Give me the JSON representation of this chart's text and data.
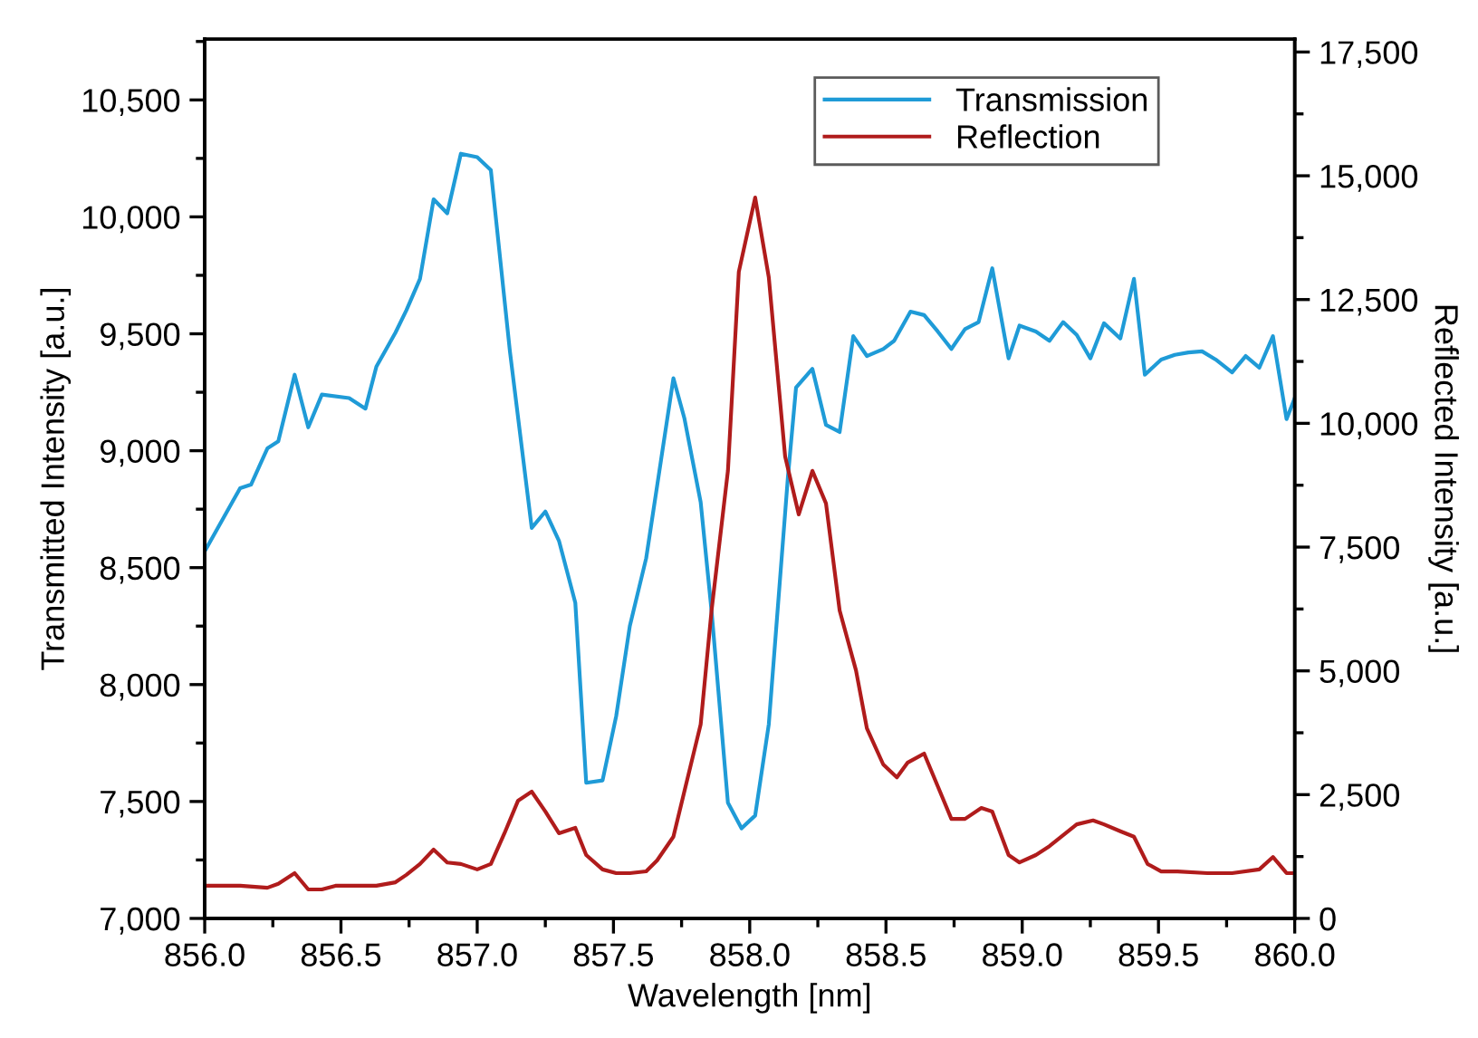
{
  "chart_data": {
    "type": "line",
    "xlabel": "Wavelength [nm]",
    "ylabel": "Transmitted Intensity [a.u.]",
    "y2label": "Reflected Intensity [a.u.]",
    "xlim": [
      856.0,
      860.0
    ],
    "xticks": [
      {
        "value": 856.0,
        "label": "856.0"
      },
      {
        "value": 856.5,
        "label": "856.5"
      },
      {
        "value": 857.0,
        "label": "857.0"
      },
      {
        "value": 857.5,
        "label": "857.5"
      },
      {
        "value": 858.0,
        "label": "858.0"
      },
      {
        "value": 858.5,
        "label": "858.5"
      },
      {
        "value": 859.0,
        "label": "859.0"
      },
      {
        "value": 859.5,
        "label": "859.5"
      },
      {
        "value": 860.0,
        "label": "860.0"
      }
    ],
    "ylim": [
      7000,
      10760
    ],
    "yticks": [
      {
        "value": 7000,
        "label": "7,000"
      },
      {
        "value": 7500,
        "label": "7,500"
      },
      {
        "value": 8000,
        "label": "8,000"
      },
      {
        "value": 8500,
        "label": "8,500"
      },
      {
        "value": 9000,
        "label": "9,000"
      },
      {
        "value": 9500,
        "label": "9,500"
      },
      {
        "value": 10000,
        "label": "10,000"
      },
      {
        "value": 10500,
        "label": "10,500"
      }
    ],
    "y2lim": [
      0,
      17760
    ],
    "y2ticks": [
      0,
      {
        "value": 2500,
        "label": "2,500"
      },
      {
        "value": 5000,
        "label": "5,000"
      },
      {
        "value": 7500,
        "label": "7,500"
      },
      {
        "value": 10000,
        "label": "10,000"
      },
      {
        "value": 12500,
        "label": "12,500"
      },
      {
        "value": 15000,
        "label": "15,000"
      },
      {
        "value": 17500,
        "label": "17,500"
      }
    ],
    "legend": "top right",
    "grid": false,
    "marker": "none",
    "line_style": "solid",
    "series": [
      {
        "name": "Transmission",
        "color": "#1f9bd7",
        "x": [
          856.0,
          856.13,
          856.17,
          856.23,
          856.27,
          856.33,
          856.38,
          856.43,
          856.53,
          856.59,
          856.63,
          856.7,
          856.74,
          856.79,
          856.84,
          856.89,
          856.94,
          857.0,
          857.05,
          857.12,
          857.2,
          857.25,
          857.3,
          857.36,
          857.4,
          857.46,
          857.51,
          857.56,
          857.62,
          857.72,
          857.76,
          857.82,
          857.86,
          857.92,
          857.97,
          858.02,
          858.07,
          858.14,
          858.17,
          858.23,
          858.28,
          858.33,
          858.38,
          858.43,
          858.49,
          858.53,
          858.59,
          858.64,
          858.69,
          858.74,
          858.79,
          858.84,
          858.89,
          858.95,
          858.99,
          859.05,
          859.1,
          859.15,
          859.2,
          859.25,
          859.3,
          859.36,
          859.41,
          859.45,
          859.51,
          859.56,
          859.61,
          859.66,
          859.71,
          859.77,
          859.82,
          859.87,
          859.92,
          859.97,
          860.0
        ],
        "values": [
          8570,
          8840,
          8855,
          9010,
          9040,
          9325,
          9100,
          9240,
          9225,
          9180,
          9360,
          9505,
          9600,
          9735,
          10075,
          10015,
          10270,
          10255,
          10200,
          9425,
          8670,
          8740,
          8615,
          8350,
          7580,
          7590,
          7865,
          8250,
          8540,
          9310,
          9140,
          8780,
          8315,
          7495,
          7385,
          7440,
          7830,
          8885,
          9270,
          9350,
          9110,
          9080,
          9490,
          9405,
          9435,
          9470,
          9595,
          9580,
          9510,
          9435,
          9520,
          9550,
          9780,
          9395,
          9535,
          9510,
          9470,
          9550,
          9495,
          9395,
          9545,
          9480,
          9735,
          9325,
          9390,
          9410,
          9420,
          9425,
          9390,
          9335,
          9405,
          9355,
          9490,
          9135,
          9225
        ]
      },
      {
        "name": "Reflection",
        "color": "#b01c1c",
        "axis": "y2",
        "x": [
          856.0,
          856.13,
          856.23,
          856.27,
          856.33,
          856.38,
          856.43,
          856.48,
          856.53,
          856.63,
          856.7,
          856.74,
          856.79,
          856.84,
          856.89,
          856.94,
          857.0,
          857.05,
          857.1,
          857.15,
          857.2,
          857.25,
          857.3,
          857.36,
          857.4,
          857.46,
          857.51,
          857.56,
          857.62,
          857.66,
          857.72,
          857.76,
          857.82,
          857.86,
          857.92,
          857.96,
          858.02,
          858.07,
          858.13,
          858.18,
          858.23,
          858.28,
          858.33,
          858.39,
          858.43,
          858.49,
          858.54,
          858.58,
          858.64,
          858.69,
          858.74,
          858.79,
          858.85,
          858.89,
          858.95,
          858.99,
          859.05,
          859.1,
          859.15,
          859.2,
          859.26,
          859.3,
          859.36,
          859.41,
          859.46,
          859.51,
          859.57,
          859.68,
          859.77,
          859.87,
          859.92,
          859.97,
          860.0
        ],
        "values": [
          660,
          660,
          620,
          700,
          915,
          585,
          585,
          660,
          660,
          660,
          730,
          880,
          1100,
          1390,
          1130,
          1100,
          990,
          1100,
          1720,
          2380,
          2560,
          2160,
          1720,
          1830,
          1280,
          990,
          915,
          915,
          950,
          1170,
          1650,
          2560,
          3920,
          6220,
          9040,
          13060,
          14560,
          12950,
          9330,
          8160,
          9040,
          8380,
          6220,
          5010,
          3840,
          3110,
          2850,
          3150,
          3330,
          2670,
          2010,
          2010,
          2230,
          2160,
          1280,
          1130,
          1280,
          1460,
          1680,
          1900,
          1980,
          1900,
          1760,
          1650,
          1100,
          950,
          950,
          915,
          915,
          990,
          1240,
          915,
          915
        ]
      }
    ]
  }
}
